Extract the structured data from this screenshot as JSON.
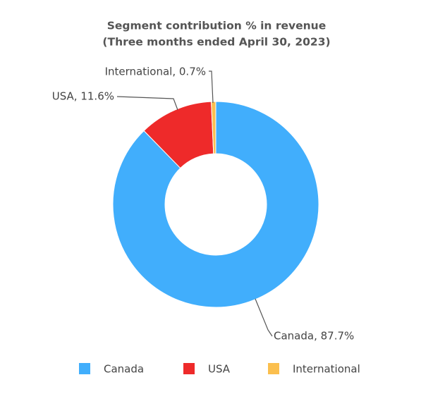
{
  "chart_data": {
    "type": "donut",
    "title": "Segment contribution % in revenue",
    "subtitle": "(Three months ended April 30, 2023)",
    "categories": [
      "Canada",
      "USA",
      "International"
    ],
    "values": [
      87.7,
      11.6,
      0.7
    ],
    "value_labels": [
      "Canada, 87.7%",
      "USA, 11.6%",
      "International, 0.7%"
    ],
    "colors": [
      "#41aefc",
      "#ee2a2a",
      "#fbbf4e"
    ],
    "legend": "bottom"
  }
}
